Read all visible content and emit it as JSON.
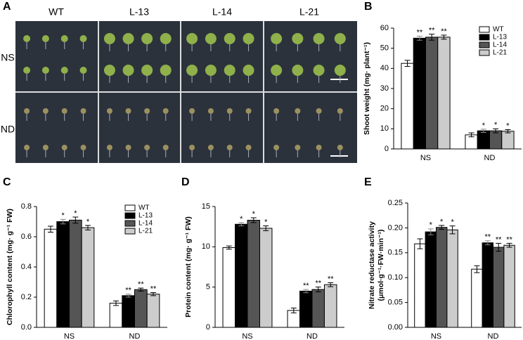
{
  "photo_panel": {
    "label": "A",
    "columns": [
      "WT",
      "L-13",
      "L-14",
      "L-21"
    ],
    "rows": [
      "NS",
      "ND"
    ]
  },
  "chart_data": [
    {
      "type": "bar",
      "panel": "B",
      "ylabel": [
        "Shoot weight (mg· plant⁻¹)"
      ],
      "categories": [
        "NS",
        "ND"
      ],
      "ylim": [
        0,
        60
      ],
      "yticks": [
        0,
        10,
        20,
        30,
        40,
        50,
        60
      ],
      "legend": "upper right",
      "series": [
        {
          "name": "WT",
          "color": "#ffffff",
          "values": [
            42.5,
            7
          ],
          "errors": [
            1.5,
            1
          ]
        },
        {
          "name": "L-13",
          "color": "#000000",
          "values": [
            55,
            9
          ],
          "errors": [
            1,
            0.8
          ],
          "significance": [
            "**",
            "*"
          ]
        },
        {
          "name": "L-14",
          "color": "#555555",
          "values": [
            55.5,
            9
          ],
          "errors": [
            1.5,
            1
          ],
          "significance": [
            "**",
            "*"
          ]
        },
        {
          "name": "L-21",
          "color": "#cccccc",
          "values": [
            55.5,
            8.8
          ],
          "errors": [
            1,
            0.8
          ],
          "significance": [
            "**",
            "*"
          ]
        }
      ]
    },
    {
      "type": "bar",
      "panel": "C",
      "ylabel": [
        "Chlorophyll content (mg· g⁻¹ FW)"
      ],
      "categories": [
        "NS",
        "ND"
      ],
      "ylim": [
        0,
        0.8
      ],
      "yticks": [
        {
          "value": 0,
          "label": "0.0"
        },
        0.2,
        0.4,
        0.6,
        0.8
      ],
      "legend": "upper right",
      "series": [
        {
          "name": "WT",
          "color": "#ffffff",
          "values": [
            0.65,
            0.16
          ],
          "errors": [
            0.02,
            0.015
          ]
        },
        {
          "name": "L-13",
          "color": "#000000",
          "values": [
            0.7,
            0.21
          ],
          "errors": [
            0.015,
            0.01
          ],
          "significance": [
            "*",
            "**"
          ]
        },
        {
          "name": "L-14",
          "color": "#555555",
          "values": [
            0.71,
            0.25
          ],
          "errors": [
            0.02,
            0.01
          ],
          "significance": [
            "*",
            "**"
          ]
        },
        {
          "name": "L-21",
          "color": "#cccccc",
          "values": [
            0.66,
            0.22
          ],
          "errors": [
            0.015,
            0.01
          ],
          "significance": [
            "*",
            "**"
          ]
        }
      ]
    },
    {
      "type": "bar",
      "panel": "D",
      "ylabel": [
        "Protein content (mg· g⁻¹ FW)"
      ],
      "categories": [
        "NS",
        "ND"
      ],
      "ylim": [
        0,
        15
      ],
      "yticks": [
        0,
        5,
        10,
        15
      ],
      "series": [
        {
          "name": "WT",
          "color": "#ffffff",
          "values": [
            9.9,
            2.1
          ],
          "errors": [
            0.2,
            0.3
          ]
        },
        {
          "name": "L-13",
          "color": "#000000",
          "values": [
            12.8,
            4.5
          ],
          "errors": [
            0.2,
            0.2
          ],
          "significance": [
            "*",
            "**"
          ]
        },
        {
          "name": "L-14",
          "color": "#555555",
          "values": [
            13.3,
            4.7
          ],
          "errors": [
            0.3,
            0.3
          ],
          "significance": [
            "*",
            "**"
          ]
        },
        {
          "name": "L-21",
          "color": "#cccccc",
          "values": [
            12.3,
            5.3
          ],
          "errors": [
            0.3,
            0.25
          ],
          "significance": [
            "*",
            "**"
          ]
        }
      ]
    },
    {
      "type": "bar",
      "panel": "E",
      "ylabel": [
        "Nitrate reductase activity",
        "(μmol·g⁻¹·FW·min⁻¹)"
      ],
      "categories": [
        "NS",
        "ND"
      ],
      "ylim": [
        0,
        0.25
      ],
      "yticks": [
        {
          "value": 0,
          "label": "0.00"
        },
        0.05,
        {
          "value": 0.1,
          "label": "0.10"
        },
        0.15,
        {
          "value": 0.2,
          "label": "0.20"
        },
        0.25
      ],
      "series": [
        {
          "name": "WT",
          "color": "#ffffff",
          "values": [
            0.168,
            0.117
          ],
          "errors": [
            0.01,
            0.007
          ]
        },
        {
          "name": "L-13",
          "color": "#000000",
          "values": [
            0.192,
            0.17
          ],
          "errors": [
            0.006,
            0.004
          ],
          "significance": [
            "*",
            "**"
          ]
        },
        {
          "name": "L-14",
          "color": "#555555",
          "values": [
            0.201,
            0.161
          ],
          "errors": [
            0.004,
            0.008
          ],
          "significance": [
            "*",
            "**"
          ]
        },
        {
          "name": "L-21",
          "color": "#cccccc",
          "values": [
            0.196,
            0.165
          ],
          "errors": [
            0.008,
            0.004
          ],
          "significance": [
            "*",
            "**"
          ]
        }
      ]
    }
  ]
}
